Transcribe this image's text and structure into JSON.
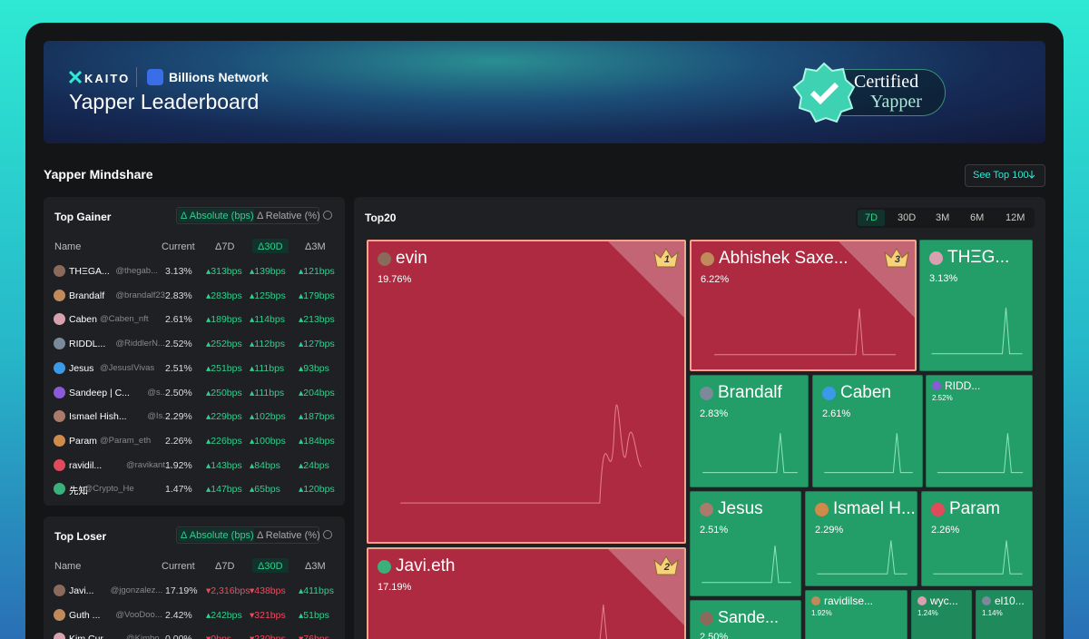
{
  "header": {
    "brand": "KAITO",
    "partner": "Billions Network",
    "title": "Yapper Leaderboard",
    "badge": [
      "Certified",
      "Yapper"
    ]
  },
  "section_title": "Yapper Mindshare",
  "see_top_button": "See Top 100",
  "top_gainer": {
    "title": "Top Gainer",
    "toggles": [
      "Δ Absolute (bps)",
      "Δ Relative (%)"
    ],
    "columns": [
      "Name",
      "Current",
      "Δ7D",
      "Δ30D",
      "Δ3M"
    ],
    "rows": [
      [
        "THΞGA...",
        "@thegab...",
        "3.13%",
        "▴313bps",
        "▴139bps",
        "▴121bps"
      ],
      [
        "Brandalf",
        "@brandalf23",
        "2.83%",
        "▴283bps",
        "▴125bps",
        "▴179bps"
      ],
      [
        "Caben",
        "@Caben_nft",
        "2.61%",
        "▴189bps",
        "▴114bps",
        "▴213bps"
      ],
      [
        "RIDDL...",
        "@RiddlerN...",
        "2.52%",
        "▴252bps",
        "▴112bps",
        "▴127bps"
      ],
      [
        "Jesus",
        "@JesusIVivas",
        "2.51%",
        "▴251bps",
        "▴111bps",
        "▴93bps"
      ],
      [
        "Sandeep | C...",
        "@s...",
        "2.50%",
        "▴250bps",
        "▴111bps",
        "▴204bps"
      ],
      [
        "Ismael Hish...",
        "@Is...",
        "2.29%",
        "▴229bps",
        "▴102bps",
        "▴187bps"
      ],
      [
        "Param",
        "@Param_eth",
        "2.26%",
        "▴226bps",
        "▴100bps",
        "▴184bps"
      ],
      [
        "ravidil...",
        "@ravikant...",
        "1.92%",
        "▴143bps",
        "▴84bps",
        "▴24bps"
      ],
      [
        "先知",
        "@Crypto_He",
        "1.47%",
        "▴147bps",
        "▴65bps",
        "▴120bps"
      ]
    ]
  },
  "top_loser": {
    "title": "Top Loser",
    "toggles": [
      "Δ Absolute (bps)",
      "Δ Relative (%)"
    ],
    "columns": [
      "Name",
      "Current",
      "Δ7D",
      "Δ30D",
      "Δ3M"
    ],
    "rows": [
      [
        "Javi...",
        "@jgonzalez...",
        "17.19%",
        "▾2,316bps",
        "▾438bps",
        "▴411bps"
      ],
      [
        "Guth ...",
        "@VooDoo...",
        "2.42%",
        "▴242bps",
        "▾321bps",
        "▴51bps"
      ],
      [
        "Kim Cur...",
        "@Kimbo...",
        "0.00%",
        "▾0bps",
        "▾230bps",
        "▾76bps"
      ]
    ]
  },
  "treemap": {
    "title": "Top20",
    "periods": [
      "7D",
      "30D",
      "3M",
      "6M",
      "12M"
    ],
    "tiles": [
      {
        "name": "evin",
        "value": "19.76%",
        "rank": 1,
        "color": "red"
      },
      {
        "name": "Abhishek Saxe...",
        "value": "6.22%",
        "rank": 3,
        "color": "red"
      },
      {
        "name": "THΞG...",
        "value": "3.13%",
        "color": "green"
      },
      {
        "name": "Brandalf",
        "value": "2.83%",
        "color": "green"
      },
      {
        "name": "Caben",
        "value": "2.61%",
        "color": "green"
      },
      {
        "name": "RIDD...",
        "value": "2.52%",
        "color": "green"
      },
      {
        "name": "Jesus",
        "value": "2.51%",
        "color": "green"
      },
      {
        "name": "Ismael H...",
        "value": "2.29%",
        "color": "green"
      },
      {
        "name": "Param",
        "value": "2.26%",
        "color": "green"
      },
      {
        "name": "Javi.eth",
        "value": "17.19%",
        "rank": 2,
        "color": "red"
      },
      {
        "name": "Sande...",
        "value": "2.50%",
        "color": "green"
      },
      {
        "name": "ravidilse...",
        "value": "1.92%",
        "color": "green"
      },
      {
        "name": "wyc...",
        "value": "1.24%",
        "color": "green"
      },
      {
        "name": "el10...",
        "value": "1.14%",
        "color": "green"
      }
    ]
  }
}
